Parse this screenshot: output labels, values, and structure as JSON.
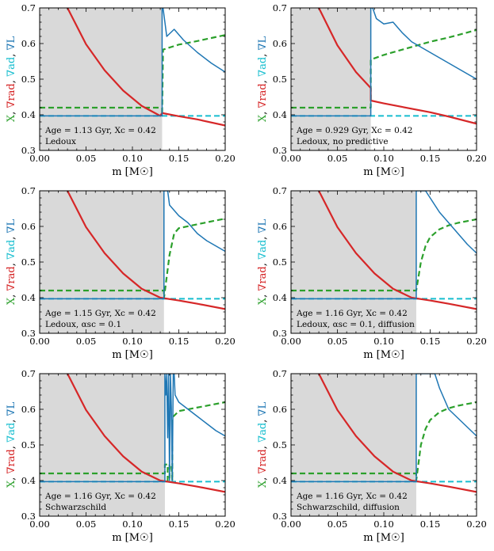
{
  "colors": {
    "X": "#2ca02c",
    "grad_rad": "#d62728",
    "grad_ad": "#17becf",
    "grad_L": "#1f77b4",
    "shade": "#d9d9d9"
  },
  "shared_axes": {
    "xlim": [
      0.0,
      0.2
    ],
    "ylim": [
      0.3,
      0.7
    ],
    "xticks": [
      0.0,
      0.05,
      0.1,
      0.15,
      0.2
    ],
    "xtick_labels": [
      "0.00",
      "0.05",
      "0.10",
      "0.15",
      "0.20"
    ],
    "yticks": [
      0.3,
      0.4,
      0.5,
      0.6,
      0.7
    ],
    "ytick_labels": [
      "0.3",
      "0.4",
      "0.5",
      "0.6",
      "0.7"
    ],
    "xlabel": "m [M☉]",
    "ylabel_parts": [
      {
        "text": "X",
        "color_key": "X"
      },
      {
        "text": ", ",
        "color_key": null
      },
      {
        "text": "∇rad",
        "color_key": "grad_rad"
      },
      {
        "text": ", ",
        "color_key": null
      },
      {
        "text": "∇ad",
        "color_key": "grad_ad"
      },
      {
        "text": ", ",
        "color_key": null
      },
      {
        "text": "∇L",
        "color_key": "grad_L"
      }
    ]
  },
  "chart_data": [
    {
      "type": "line",
      "annotation_line1": "Age = 1.13 Gyr, Xc = 0.42",
      "annotation_line2": "Ledoux",
      "shade_x": [
        0.0,
        0.132
      ],
      "series": [
        {
          "name": "grad_rad",
          "x": [
            0.03,
            0.05,
            0.07,
            0.09,
            0.11,
            0.13,
            0.132,
            0.15,
            0.17,
            0.2
          ],
          "y": [
            0.7,
            0.598,
            0.525,
            0.468,
            0.425,
            0.397,
            0.405,
            0.396,
            0.387,
            0.37
          ]
        },
        {
          "name": "grad_ad",
          "x": [
            0.0,
            0.2
          ],
          "y": [
            0.397,
            0.397
          ]
        },
        {
          "name": "X",
          "x": [
            0.0,
            0.132,
            0.132,
            0.133,
            0.15,
            0.17,
            0.2
          ],
          "y": [
            0.42,
            0.42,
            0.4,
            0.583,
            0.597,
            0.607,
            0.624
          ]
        },
        {
          "name": "grad_L",
          "x": [
            0.0,
            0.132,
            0.132,
            0.133,
            0.137,
            0.145,
            0.155,
            0.17,
            0.185,
            0.2
          ],
          "y": [
            0.397,
            0.397,
            0.7,
            0.7,
            0.62,
            0.64,
            0.61,
            0.575,
            0.545,
            0.52
          ]
        }
      ]
    },
    {
      "type": "line",
      "annotation_line1": "Age = 0.929 Gyr, Xc = 0.42",
      "annotation_line2": "Ledoux, no predictive",
      "shade_x": [
        0.0,
        0.086
      ],
      "series": [
        {
          "name": "grad_rad",
          "x": [
            0.03,
            0.05,
            0.07,
            0.086,
            0.086,
            0.1,
            0.12,
            0.15,
            0.17,
            0.2
          ],
          "y": [
            0.7,
            0.595,
            0.52,
            0.475,
            0.44,
            0.432,
            0.422,
            0.407,
            0.395,
            0.375
          ]
        },
        {
          "name": "grad_ad",
          "x": [
            0.0,
            0.2
          ],
          "y": [
            0.397,
            0.397
          ]
        },
        {
          "name": "X",
          "x": [
            0.0,
            0.086,
            0.086,
            0.1,
            0.12,
            0.15,
            0.17,
            0.2
          ],
          "y": [
            0.42,
            0.42,
            0.555,
            0.568,
            0.583,
            0.605,
            0.617,
            0.638
          ]
        },
        {
          "name": "grad_L",
          "x": [
            0.0,
            0.086,
            0.086,
            0.088,
            0.092,
            0.1,
            0.11,
            0.12,
            0.13,
            0.15,
            0.17,
            0.2
          ],
          "y": [
            0.397,
            0.397,
            0.7,
            0.7,
            0.67,
            0.655,
            0.66,
            0.63,
            0.605,
            0.575,
            0.545,
            0.5
          ]
        }
      ]
    },
    {
      "type": "line",
      "annotation_line1": "Age = 1.15 Gyr, Xc = 0.42",
      "annotation_line2": "Ledoux, αsc = 0.1",
      "shade_x": [
        0.0,
        0.134
      ],
      "series": [
        {
          "name": "grad_rad",
          "x": [
            0.03,
            0.05,
            0.07,
            0.09,
            0.11,
            0.13,
            0.15,
            0.17,
            0.2
          ],
          "y": [
            0.7,
            0.598,
            0.525,
            0.468,
            0.425,
            0.4,
            0.392,
            0.383,
            0.368
          ]
        },
        {
          "name": "grad_ad",
          "x": [
            0.0,
            0.2
          ],
          "y": [
            0.397,
            0.397
          ]
        },
        {
          "name": "X",
          "x": [
            0.0,
            0.134,
            0.134,
            0.14,
            0.145,
            0.15,
            0.17,
            0.2
          ],
          "y": [
            0.42,
            0.42,
            0.398,
            0.52,
            0.58,
            0.595,
            0.606,
            0.622
          ]
        },
        {
          "name": "grad_L",
          "x": [
            0.0,
            0.134,
            0.134,
            0.138,
            0.14,
            0.145,
            0.15,
            0.16,
            0.17,
            0.18,
            0.2
          ],
          "y": [
            0.397,
            0.397,
            0.7,
            0.7,
            0.66,
            0.645,
            0.63,
            0.61,
            0.58,
            0.56,
            0.53
          ]
        }
      ]
    },
    {
      "type": "line",
      "annotation_line1": "Age = 1.16 Gyr, Xc = 0.42",
      "annotation_line2": "Ledoux, αsc = 0.1, diffusion",
      "shade_x": [
        0.0,
        0.135
      ],
      "series": [
        {
          "name": "grad_rad",
          "x": [
            0.03,
            0.05,
            0.07,
            0.09,
            0.11,
            0.13,
            0.15,
            0.17,
            0.2
          ],
          "y": [
            0.7,
            0.598,
            0.525,
            0.468,
            0.425,
            0.4,
            0.392,
            0.383,
            0.368
          ]
        },
        {
          "name": "grad_ad",
          "x": [
            0.0,
            0.2
          ],
          "y": [
            0.397,
            0.397
          ]
        },
        {
          "name": "X",
          "x": [
            0.0,
            0.135,
            0.135,
            0.14,
            0.145,
            0.15,
            0.16,
            0.17,
            0.18,
            0.2
          ],
          "y": [
            0.42,
            0.42,
            0.42,
            0.5,
            0.545,
            0.57,
            0.592,
            0.603,
            0.61,
            0.62
          ]
        },
        {
          "name": "grad_L",
          "x": [
            0.0,
            0.135,
            0.135,
            0.136,
            0.145,
            0.15,
            0.16,
            0.17,
            0.18,
            0.19,
            0.2
          ],
          "y": [
            0.397,
            0.397,
            0.7,
            0.7,
            0.7,
            0.68,
            0.64,
            0.61,
            0.58,
            0.55,
            0.525
          ]
        }
      ]
    },
    {
      "type": "line",
      "annotation_line1": "Age = 1.16 Gyr, Xc = 0.42",
      "annotation_line2": "Schwarzschild",
      "shade_x": [
        0.0,
        0.135
      ],
      "series": [
        {
          "name": "grad_rad",
          "x": [
            0.03,
            0.05,
            0.07,
            0.09,
            0.11,
            0.13,
            0.15,
            0.17,
            0.2
          ],
          "y": [
            0.7,
            0.598,
            0.525,
            0.468,
            0.425,
            0.4,
            0.392,
            0.383,
            0.368
          ]
        },
        {
          "name": "grad_ad",
          "x": [
            0.0,
            0.2
          ],
          "y": [
            0.397,
            0.397
          ]
        },
        {
          "name": "X",
          "x": [
            0.0,
            0.135,
            0.135,
            0.138,
            0.138,
            0.14,
            0.14,
            0.142,
            0.143,
            0.143,
            0.15,
            0.17,
            0.2
          ],
          "y": [
            0.42,
            0.42,
            0.445,
            0.445,
            0.4,
            0.4,
            0.445,
            0.445,
            0.4,
            0.577,
            0.595,
            0.605,
            0.62
          ]
        },
        {
          "name": "grad_L",
          "x": [
            0.0,
            0.135,
            0.135,
            0.136,
            0.137,
            0.138,
            0.139,
            0.14,
            0.141,
            0.142,
            0.143,
            0.144,
            0.145,
            0.146,
            0.15,
            0.16,
            0.17,
            0.18,
            0.19,
            0.2
          ],
          "y": [
            0.397,
            0.397,
            0.7,
            0.64,
            0.7,
            0.52,
            0.7,
            0.4,
            0.7,
            0.6,
            0.4,
            0.7,
            0.7,
            0.64,
            0.62,
            0.6,
            0.58,
            0.56,
            0.54,
            0.525
          ]
        }
      ]
    },
    {
      "type": "line",
      "annotation_line1": "Age = 1.16 Gyr, Xc = 0.42",
      "annotation_line2": "Schwarzschild, diffusion",
      "shade_x": [
        0.0,
        0.135
      ],
      "series": [
        {
          "name": "grad_rad",
          "x": [
            0.03,
            0.05,
            0.07,
            0.09,
            0.11,
            0.13,
            0.15,
            0.17,
            0.2
          ],
          "y": [
            0.7,
            0.598,
            0.525,
            0.468,
            0.425,
            0.4,
            0.392,
            0.383,
            0.368
          ]
        },
        {
          "name": "grad_ad",
          "x": [
            0.0,
            0.2
          ],
          "y": [
            0.397,
            0.397
          ]
        },
        {
          "name": "X",
          "x": [
            0.0,
            0.135,
            0.135,
            0.14,
            0.145,
            0.15,
            0.16,
            0.17,
            0.18,
            0.2
          ],
          "y": [
            0.42,
            0.42,
            0.4,
            0.5,
            0.545,
            0.57,
            0.592,
            0.603,
            0.61,
            0.62
          ]
        },
        {
          "name": "grad_L",
          "x": [
            0.0,
            0.135,
            0.135,
            0.136,
            0.155,
            0.16,
            0.17,
            0.18,
            0.19,
            0.2
          ],
          "y": [
            0.397,
            0.397,
            0.7,
            0.7,
            0.7,
            0.66,
            0.6,
            0.575,
            0.55,
            0.525
          ]
        }
      ]
    }
  ]
}
